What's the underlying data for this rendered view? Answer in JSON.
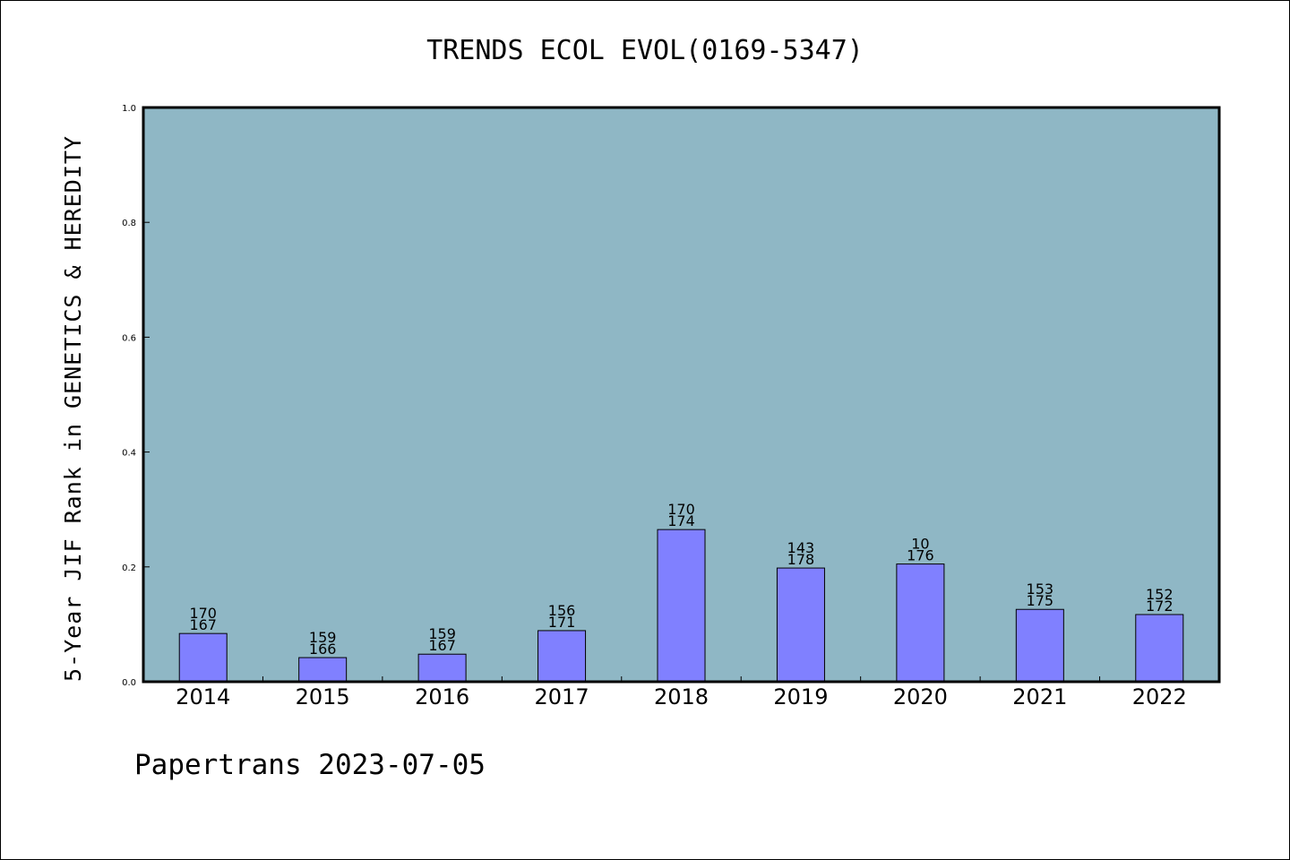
{
  "chart_data": {
    "type": "bar",
    "title": "TRENDS ECOL EVOL(0169-5347)",
    "xlabel": "",
    "ylabel": "5-Year JIF Rank in GENETICS & HEREDITY",
    "ylim": [
      0,
      1.0
    ],
    "yticks": [
      "0.0",
      "0.2",
      "0.4",
      "0.6",
      "0.8",
      "1.0"
    ],
    "grid": false,
    "categories": [
      "2014",
      "2015",
      "2016",
      "2017",
      "2018",
      "2019",
      "2020",
      "2021",
      "2022"
    ],
    "values": [
      0.084,
      0.042,
      0.048,
      0.089,
      0.265,
      0.198,
      0.205,
      0.126,
      0.117
    ],
    "labels_top": [
      "170",
      "159",
      "159",
      "156",
      "170",
      "143",
      "10",
      "153",
      "152"
    ],
    "labels_bottom": [
      "167",
      "166",
      "167",
      "171",
      "174",
      "178",
      "176",
      "175",
      "172"
    ],
    "colors": {
      "plot_background": "#8fb7c5",
      "bar_fill": "#8080ff",
      "bar_edge": "#000000"
    }
  },
  "footer": {
    "text": "Papertrans 2023-07-05"
  }
}
